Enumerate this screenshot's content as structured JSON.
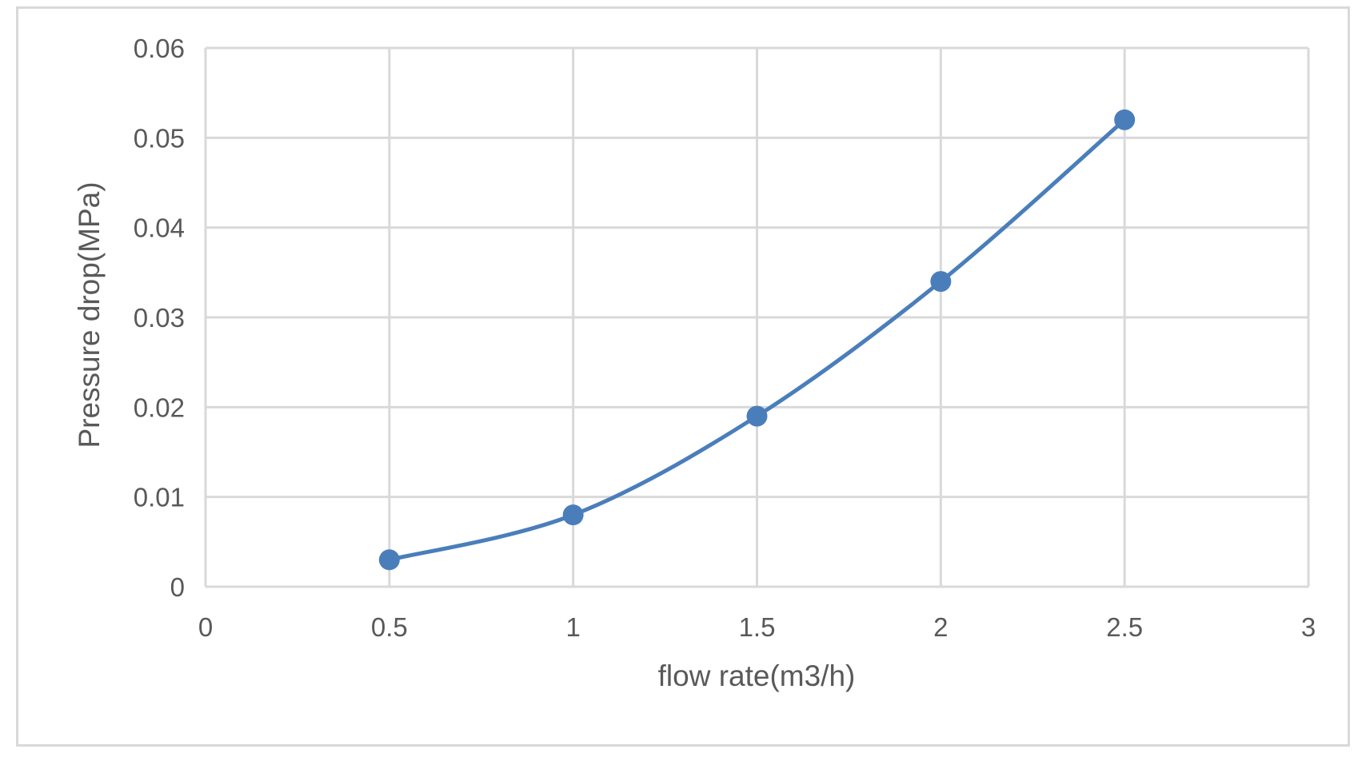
{
  "chart_data": {
    "type": "scatter",
    "title": "",
    "xlabel": "flow rate(m3/h)",
    "ylabel": "Pressure drop(MPa)",
    "xlim": [
      0,
      3
    ],
    "ylim": [
      0,
      0.06
    ],
    "x_ticks": [
      "0",
      "0.5",
      "1",
      "1.5",
      "2",
      "2.5",
      "3"
    ],
    "y_ticks": [
      "0",
      "0.01",
      "0.02",
      "0.03",
      "0.04",
      "0.05",
      "0.06"
    ],
    "grid": true,
    "legend": "none",
    "smooth_line": true,
    "series": [
      {
        "color": "#4a7ebb",
        "x": [
          0.5,
          1,
          1.5,
          2,
          2.5
        ],
        "y": [
          0.003,
          0.008,
          0.019,
          0.034,
          0.052
        ]
      }
    ]
  },
  "colors": {
    "series": "#4a7ebb",
    "grid": "#d9d9d9",
    "axis_text": "#595959",
    "frame": "#d9d9d9"
  }
}
